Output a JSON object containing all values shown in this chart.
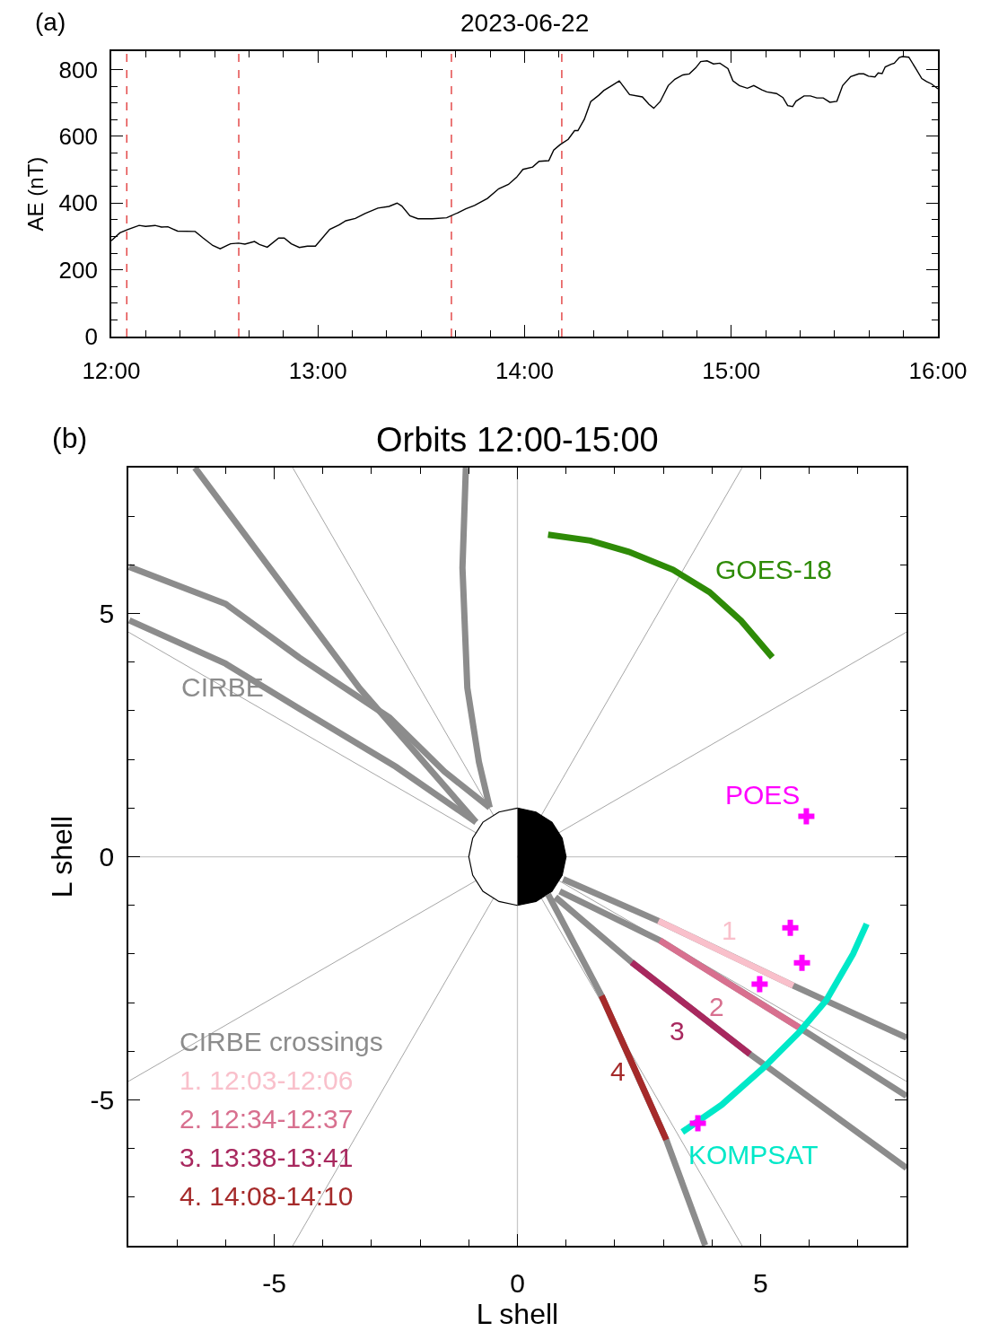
{
  "chart_data": [
    {
      "type": "line",
      "title": "2023-06-22",
      "ylabel": "AE (nT)",
      "color": "#000000",
      "annotations": [
        "(a)"
      ],
      "x": [
        12.0,
        12.042,
        12.081,
        12.135,
        12.166,
        12.212,
        12.243,
        12.274,
        12.321,
        12.406,
        12.445,
        12.491,
        12.527,
        12.577,
        12.616,
        12.647,
        12.693,
        12.717,
        12.755,
        12.81,
        12.837,
        12.871,
        12.91,
        12.949,
        12.988,
        13.057,
        13.104,
        13.135,
        13.181,
        13.228,
        13.29,
        13.344,
        13.383,
        13.406,
        13.445,
        13.484,
        13.553,
        13.623,
        13.677,
        13.716,
        13.758,
        13.82,
        13.875,
        13.922,
        13.961,
        13.992,
        14.039,
        14.07,
        14.117,
        14.141,
        14.172,
        14.211,
        14.242,
        14.258,
        14.289,
        14.32,
        14.359,
        14.383,
        14.422,
        14.458,
        14.508,
        14.57,
        14.602,
        14.625,
        14.656,
        14.695,
        14.727,
        14.766,
        14.797,
        14.828,
        14.852,
        14.883,
        14.914,
        14.945,
        14.984,
        15.008,
        15.039,
        15.078,
        15.109,
        15.148,
        15.172,
        15.219,
        15.25,
        15.273,
        15.297,
        15.313,
        15.352,
        15.383,
        15.414,
        15.445,
        15.477,
        15.511,
        15.539,
        15.578,
        15.617,
        15.641,
        15.664,
        15.695,
        15.711,
        15.73,
        15.745,
        15.773,
        15.789,
        15.813,
        15.828,
        15.859,
        15.891,
        15.922,
        15.945,
        15.969,
        16.0
      ],
      "values": [
        287,
        311,
        321,
        333,
        330,
        333,
        328,
        329,
        316,
        315,
        295,
        273,
        263,
        278,
        280,
        277,
        285,
        276,
        268,
        295,
        295,
        278,
        267,
        271,
        271,
        321,
        335,
        347,
        354,
        369,
        385,
        390,
        400,
        391,
        362,
        353,
        353,
        356,
        371,
        383,
        393,
        414,
        443,
        456,
        477,
        501,
        508,
        525,
        527,
        559,
        575,
        591,
        617,
        617,
        651,
        704,
        723,
        737,
        752,
        766,
        725,
        718,
        696,
        684,
        704,
        752,
        771,
        784,
        787,
        805,
        824,
        826,
        817,
        819,
        803,
        766,
        752,
        744,
        752,
        739,
        733,
        728,
        716,
        692,
        689,
        705,
        721,
        721,
        715,
        715,
        702,
        705,
        752,
        779,
        787,
        787,
        780,
        778,
        790,
        788,
        808,
        816,
        819,
        836,
        839,
        837,
        805,
        773,
        764,
        757,
        742
      ],
      "xlim": [
        12,
        16
      ],
      "ylim": [
        0,
        855
      ],
      "xticks": [
        {
          "value": 12,
          "label": "12:00"
        },
        {
          "value": 12.1667,
          "label": null
        },
        {
          "value": 12.3333,
          "label": null
        },
        {
          "value": 12.5,
          "label": null
        },
        {
          "value": 12.6667,
          "label": null
        },
        {
          "value": 12.8333,
          "label": null
        },
        {
          "value": 13,
          "label": "13:00"
        },
        {
          "value": 13.1667,
          "label": null
        },
        {
          "value": 13.3333,
          "label": null
        },
        {
          "value": 13.5,
          "label": null
        },
        {
          "value": 13.6667,
          "label": null
        },
        {
          "value": 13.8333,
          "label": null
        },
        {
          "value": 14,
          "label": "14:00"
        },
        {
          "value": 14.1667,
          "label": null
        },
        {
          "value": 14.3333,
          "label": null
        },
        {
          "value": 14.5,
          "label": null
        },
        {
          "value": 14.6667,
          "label": null
        },
        {
          "value": 14.8333,
          "label": null
        },
        {
          "value": 15,
          "label": "15:00"
        },
        {
          "value": 15.1667,
          "label": null
        },
        {
          "value": 15.3333,
          "label": null
        },
        {
          "value": 15.5,
          "label": null
        },
        {
          "value": 15.6667,
          "label": null
        },
        {
          "value": 15.8333,
          "label": null
        },
        {
          "value": 16,
          "label": "16:00"
        }
      ],
      "yticks": [
        0,
        {
          "value": 50,
          "label": null
        },
        {
          "value": 100,
          "label": null
        },
        {
          "value": 150,
          "label": null
        },
        200,
        {
          "value": 250,
          "label": null
        },
        {
          "value": 300,
          "label": null
        },
        {
          "value": 350,
          "label": null
        },
        400,
        {
          "value": 450,
          "label": null
        },
        {
          "value": 500,
          "label": null
        },
        {
          "value": 550,
          "label": null
        },
        600,
        {
          "value": 650,
          "label": null
        },
        {
          "value": 700,
          "label": null
        },
        {
          "value": 750,
          "label": null
        },
        800
      ],
      "ref_lines": [
        {
          "axis": "x",
          "value": 12.075,
          "color": "#e03030",
          "line_style": "dashed"
        },
        {
          "axis": "x",
          "value": 12.617,
          "color": "#e03030",
          "line_style": "dashed"
        },
        {
          "axis": "x",
          "value": 13.646,
          "color": "#e03030",
          "line_style": "dashed"
        },
        {
          "axis": "x",
          "value": 14.18,
          "color": "#e03030",
          "line_style": "dashed"
        }
      ]
    },
    {
      "type": "line",
      "title": "Orbits 12:00-15:00",
      "xlabel": "L shell",
      "ylabel": "L shell",
      "legend": "bottom left",
      "legend_title": "CIRBE crossings",
      "xlim": [
        -8,
        8
      ],
      "ylim": [
        -8,
        8
      ],
      "xticks": [
        {
          "value": -7,
          "label": null
        },
        {
          "value": -6,
          "label": null
        },
        -5,
        {
          "value": -4,
          "label": null
        },
        {
          "value": -3,
          "label": null
        },
        {
          "value": -2,
          "label": null
        },
        {
          "value": -1,
          "label": null
        },
        0,
        {
          "value": 1,
          "label": null
        },
        {
          "value": 2,
          "label": null
        },
        {
          "value": 3,
          "label": null
        },
        {
          "value": 4,
          "label": null
        },
        5,
        {
          "value": 6,
          "label": null
        },
        {
          "value": 7,
          "label": null
        }
      ],
      "yticks": [
        {
          "value": -7,
          "label": null
        },
        {
          "value": -6,
          "label": null
        },
        -5,
        {
          "value": -4,
          "label": null
        },
        {
          "value": -3,
          "label": null
        },
        {
          "value": -2,
          "label": null
        },
        {
          "value": -1,
          "label": null
        },
        0,
        {
          "value": 1,
          "label": null
        },
        {
          "value": 2,
          "label": null
        },
        {
          "value": 3,
          "label": null
        },
        {
          "value": 4,
          "label": null
        },
        5,
        {
          "value": 6,
          "label": null
        },
        {
          "value": 7,
          "label": null
        }
      ],
      "ref_lines": [
        {
          "axis": "x",
          "value": 0,
          "color": "#c8c8c8"
        },
        {
          "axis": "y",
          "value": 0,
          "color": "#c8c8c8"
        }
      ],
      "annotations": [
        {
          "text": "CIRBE",
          "x": -6.0,
          "y": 3.97
        },
        {
          "text": "GOES-18",
          "x": 3.95,
          "y": 5.44
        },
        {
          "text": "POES",
          "x": 5.94,
          "y": 0.83
        },
        {
          "text": "KOMPSAT",
          "x": 3.39,
          "y": -5.66
        },
        {
          "text": "1",
          "x": 4.29,
          "y": -1.99
        },
        {
          "text": "2",
          "x": 4.36,
          "y": -2.62
        },
        {
          "text": "3",
          "x": 3.57,
          "y": -3.12
        },
        {
          "text": "4",
          "x": 2.4,
          "y": -4.34
        },
        "(b)"
      ],
      "series": [
        {
          "color": "#808080",
          "x": [
            -8,
            8
          ],
          "values": [
            -4.62,
            4.62
          ]
        },
        {
          "color": "#808080",
          "x": [
            -4.62,
            4.62
          ],
          "values": [
            -8,
            8
          ]
        },
        {
          "color": "#808080",
          "x": [
            -4.62,
            4.62
          ],
          "values": [
            8,
            -8
          ]
        },
        {
          "color": "#808080",
          "x": [
            -8,
            8
          ],
          "values": [
            4.62,
            -4.62
          ]
        },
        {
          "type": "area",
          "color": "#ffffff",
          "x": [
            0,
            -0.38,
            -0.71,
            -0.92,
            -1,
            -0.92,
            -0.71,
            -0.38,
            0
          ],
          "values": [
            1,
            0.92,
            0.71,
            0.38,
            0,
            -0.38,
            -0.71,
            -0.92,
            -1
          ]
        },
        {
          "type": "area",
          "color": "#000000",
          "x": [
            0,
            0.38,
            0.71,
            0.92,
            1,
            0.92,
            0.71,
            0.38,
            0
          ],
          "values": [
            1,
            0.92,
            0.71,
            0.38,
            0,
            -0.38,
            -0.71,
            -0.92,
            -1
          ]
        },
        {
          "color": "#8c8c8c",
          "x": [
            -6.63,
            -3.25,
            -0.85
          ],
          "values": [
            8.0,
            3.47,
            0.71
          ]
        },
        {
          "color": "#8c8c8c",
          "x": [
            -7.98,
            -6.0,
            -4.48,
            -2.63,
            -1.5,
            -0.57
          ],
          "values": [
            5.96,
            5.2,
            4.09,
            2.86,
            1.75,
            1.01
          ]
        },
        {
          "color": "#8c8c8c",
          "x": [
            -7.98,
            -6.0,
            -4.48,
            -2.5,
            -0.85
          ],
          "values": [
            4.86,
            3.97,
            3.04,
            1.85,
            0.71
          ]
        },
        {
          "color": "#8c8c8c",
          "x": [
            -1.06,
            -1.13,
            -1.03,
            -0.79,
            -0.57
          ],
          "values": [
            8.0,
            5.94,
            3.47,
            1.94,
            1.01
          ]
        },
        {
          "color": "#8c8c8c",
          "x": [
            0.94,
            2.9,
            5.67,
            8.0
          ],
          "values": [
            -0.46,
            -1.32,
            -2.65,
            -3.72
          ]
        },
        {
          "color": "#8c8c8c",
          "x": [
            0.87,
            2.93,
            5.79,
            8.0
          ],
          "values": [
            -0.71,
            -1.72,
            -3.51,
            -4.92
          ]
        },
        {
          "color": "#8c8c8c",
          "x": [
            0.78,
            2.35,
            4.78,
            8.0
          ],
          "values": [
            -0.83,
            -2.17,
            -4.06,
            -6.4
          ]
        },
        {
          "color": "#8c8c8c",
          "x": [
            0.63,
            1.73,
            3.06,
            3.86
          ],
          "values": [
            -0.77,
            -2.86,
            -5.82,
            -7.99
          ]
        },
        {
          "name": "1. 12:03-12:06",
          "color": "#f9c0cb",
          "x": [
            2.9,
            4.29,
            5.67
          ],
          "values": [
            -1.32,
            -1.99,
            -2.65
          ]
        },
        {
          "name": "2. 12:34-12:37",
          "color": "#d8708f",
          "x": [
            2.93,
            4.36,
            5.79
          ],
          "values": [
            -1.72,
            -2.62,
            -3.51
          ]
        },
        {
          "name": "3. 13:38-13:41",
          "color": "#a8285e",
          "x": [
            2.35,
            3.57,
            4.78
          ],
          "values": [
            -2.17,
            -3.12,
            -4.06
          ]
        },
        {
          "name": "4. 14:08-14:10",
          "color": "#a52a2a",
          "x": [
            1.73,
            2.4,
            3.06
          ],
          "values": [
            -2.86,
            -4.34,
            -5.82
          ]
        },
        {
          "color": "#2e8b07",
          "x": [
            0.63,
            1.5,
            2.29,
            3.2,
            3.95,
            4.6,
            5.24
          ],
          "values": [
            6.62,
            6.5,
            6.27,
            5.9,
            5.44,
            4.85,
            4.1
          ]
        },
        {
          "color": "#00e8c8",
          "x": [
            3.39,
            4.2,
            5.06,
            5.8,
            6.35,
            6.9,
            7.18
          ],
          "values": [
            -5.66,
            -5.1,
            -4.34,
            -3.6,
            -2.95,
            -2.0,
            -1.38
          ]
        },
        {
          "type": "scatter",
          "marker": "cross",
          "color": "#ff00ff",
          "x": [
            5.94,
            5.61,
            5.85,
            4.98,
            3.71
          ],
          "values": [
            0.83,
            -1.46,
            -2.18,
            -2.62,
            -5.48
          ]
        }
      ]
    }
  ]
}
